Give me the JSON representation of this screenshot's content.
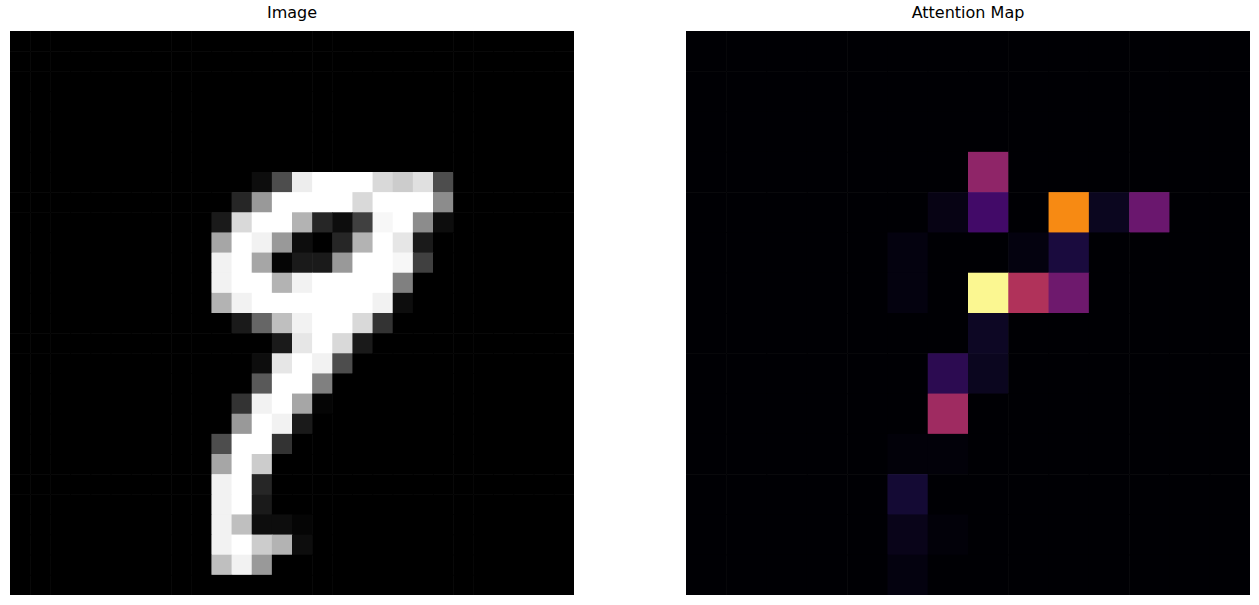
{
  "chart_data": [
    {
      "type": "heatmap",
      "title": "Image",
      "color": "gray",
      "tick_labels": false,
      "cells": [
        [
          0,
          0,
          0,
          0,
          0,
          0,
          0,
          0,
          0,
          0,
          0,
          0,
          0,
          0,
          0,
          0,
          0,
          0,
          0,
          0,
          0,
          0,
          0,
          0,
          0,
          0,
          0,
          0
        ],
        [
          0,
          0,
          0,
          0,
          0,
          0,
          0,
          0,
          0,
          0,
          0,
          0,
          0,
          0,
          0,
          0,
          0,
          0,
          0,
          0,
          0,
          0,
          0,
          0,
          0,
          0,
          0,
          0
        ],
        [
          0,
          0,
          0,
          0,
          0,
          0,
          0,
          0,
          0,
          0,
          0,
          0,
          0,
          0,
          0,
          0,
          0,
          0,
          0,
          0,
          0,
          0,
          0,
          0,
          0,
          0,
          0,
          0
        ],
        [
          0,
          0,
          0,
          0,
          0,
          0,
          0,
          0,
          0,
          0,
          0,
          0,
          0,
          0,
          0,
          0,
          0,
          0,
          0,
          0,
          0,
          0,
          0,
          0,
          0,
          0,
          0,
          0
        ],
        [
          0,
          0,
          0,
          0,
          0,
          0,
          0,
          0,
          0,
          0,
          0,
          0,
          0,
          0,
          0,
          0,
          0,
          0,
          0,
          0,
          0,
          0,
          0,
          0,
          0,
          0,
          0,
          0
        ],
        [
          0,
          0,
          0,
          0,
          0,
          0,
          0,
          0,
          0,
          0,
          0,
          0,
          0,
          0,
          0,
          0,
          0,
          0,
          0,
          0,
          0,
          0,
          0,
          0,
          0,
          0,
          0,
          0
        ],
        [
          0,
          0,
          0,
          0,
          0,
          0,
          0,
          0,
          0,
          0,
          0,
          0,
          0,
          0,
          0,
          0,
          0,
          0,
          0,
          0,
          0,
          0,
          0,
          0,
          0,
          0,
          0,
          0
        ],
        [
          0,
          0,
          0,
          0,
          0,
          0,
          0,
          0,
          0,
          0,
          0,
          0,
          0.05,
          0.3,
          0.93,
          1,
          1,
          1,
          0.85,
          0.8,
          0.88,
          0.3,
          0,
          0,
          0,
          0,
          0,
          0
        ],
        [
          0,
          0,
          0,
          0,
          0,
          0,
          0,
          0,
          0,
          0,
          0,
          0.15,
          0.6,
          1,
          1,
          1,
          1,
          0.85,
          1,
          1,
          1,
          0.55,
          0,
          0,
          0,
          0,
          0,
          0
        ],
        [
          0,
          0,
          0,
          0,
          0,
          0,
          0,
          0,
          0,
          0,
          0.1,
          0.85,
          1,
          1,
          0.7,
          0.15,
          0.05,
          0.25,
          0.97,
          1,
          0.55,
          0.05,
          0,
          0,
          0,
          0,
          0,
          0
        ],
        [
          0,
          0,
          0,
          0,
          0,
          0,
          0,
          0,
          0,
          0,
          0.65,
          1,
          0.95,
          0.6,
          0.05,
          0,
          0.15,
          0.7,
          1,
          0.9,
          0.1,
          0,
          0,
          0,
          0,
          0,
          0,
          0
        ],
        [
          0,
          0,
          0,
          0,
          0,
          0,
          0,
          0,
          0,
          0,
          0.95,
          1,
          0.65,
          0.02,
          0.1,
          0.1,
          0.6,
          1,
          1,
          0.97,
          0.25,
          0,
          0,
          0,
          0,
          0,
          0,
          0
        ],
        [
          0,
          0,
          0,
          0,
          0,
          0,
          0,
          0,
          0,
          0,
          0.95,
          1,
          1,
          0.7,
          0.95,
          1,
          1,
          1,
          1,
          0.5,
          0,
          0,
          0,
          0,
          0,
          0,
          0,
          0
        ],
        [
          0,
          0,
          0,
          0,
          0,
          0,
          0,
          0,
          0,
          0,
          0.7,
          0.95,
          1,
          1,
          1,
          1,
          1,
          1,
          0.95,
          0.05,
          0,
          0,
          0,
          0,
          0,
          0,
          0,
          0
        ],
        [
          0,
          0,
          0,
          0,
          0,
          0,
          0,
          0,
          0,
          0,
          0,
          0.1,
          0.4,
          0.75,
          0.95,
          1,
          1,
          0.85,
          0.2,
          0,
          0,
          0,
          0,
          0,
          0,
          0,
          0,
          0
        ],
        [
          0,
          0,
          0,
          0,
          0,
          0,
          0,
          0,
          0,
          0,
          0,
          0,
          0,
          0.1,
          0.9,
          1,
          0.85,
          0.1,
          0,
          0,
          0,
          0,
          0,
          0,
          0,
          0,
          0,
          0
        ],
        [
          0,
          0,
          0,
          0,
          0,
          0,
          0,
          0,
          0,
          0,
          0,
          0,
          0.05,
          0.9,
          1,
          0.95,
          0.3,
          0,
          0,
          0,
          0,
          0,
          0,
          0,
          0,
          0,
          0,
          0
        ],
        [
          0,
          0,
          0,
          0,
          0,
          0,
          0,
          0,
          0,
          0,
          0,
          0,
          0.35,
          1,
          1,
          0.5,
          0,
          0,
          0,
          0,
          0,
          0,
          0,
          0,
          0,
          0,
          0,
          0
        ],
        [
          0,
          0,
          0,
          0,
          0,
          0,
          0,
          0,
          0,
          0,
          0,
          0.2,
          0.95,
          1,
          0.65,
          0.02,
          0,
          0,
          0,
          0,
          0,
          0,
          0,
          0,
          0,
          0,
          0,
          0
        ],
        [
          0,
          0,
          0,
          0,
          0,
          0,
          0,
          0,
          0,
          0,
          0,
          0.6,
          1,
          0.95,
          0.1,
          0,
          0,
          0,
          0,
          0,
          0,
          0,
          0,
          0,
          0,
          0,
          0,
          0
        ],
        [
          0,
          0,
          0,
          0,
          0,
          0,
          0,
          0,
          0,
          0,
          0.3,
          1,
          1,
          0.2,
          0,
          0,
          0,
          0,
          0,
          0,
          0,
          0,
          0,
          0,
          0,
          0,
          0,
          0
        ],
        [
          0,
          0,
          0,
          0,
          0,
          0,
          0,
          0,
          0,
          0,
          0.65,
          1,
          0.8,
          0,
          0,
          0,
          0,
          0,
          0,
          0,
          0,
          0,
          0,
          0,
          0,
          0,
          0,
          0
        ],
        [
          0,
          0,
          0,
          0,
          0,
          0,
          0,
          0,
          0,
          0,
          0.95,
          1,
          0.15,
          0,
          0,
          0,
          0,
          0,
          0,
          0,
          0,
          0,
          0,
          0,
          0,
          0,
          0,
          0
        ],
        [
          0,
          0,
          0,
          0,
          0,
          0,
          0,
          0,
          0,
          0,
          0.95,
          1,
          0.1,
          0,
          0,
          0,
          0,
          0,
          0,
          0,
          0,
          0,
          0,
          0,
          0,
          0,
          0,
          0
        ],
        [
          0,
          0,
          0,
          0,
          0,
          0,
          0,
          0,
          0,
          0,
          0.95,
          0.75,
          0.05,
          0.05,
          0.02,
          0,
          0,
          0,
          0,
          0,
          0,
          0,
          0,
          0,
          0,
          0,
          0,
          0
        ],
        [
          0,
          0,
          0,
          0,
          0,
          0,
          0,
          0,
          0,
          0,
          0.95,
          1,
          0.8,
          0.7,
          0.05,
          0,
          0,
          0,
          0,
          0,
          0,
          0,
          0,
          0,
          0,
          0,
          0,
          0
        ],
        [
          0,
          0,
          0,
          0,
          0,
          0,
          0,
          0,
          0,
          0,
          0.75,
          0.95,
          0.6,
          0,
          0,
          0,
          0,
          0,
          0,
          0,
          0,
          0,
          0,
          0,
          0,
          0,
          0,
          0
        ],
        [
          0,
          0,
          0,
          0,
          0,
          0,
          0,
          0,
          0,
          0,
          0,
          0,
          0,
          0,
          0,
          0,
          0,
          0,
          0,
          0,
          0,
          0,
          0,
          0,
          0,
          0,
          0,
          0
        ]
      ]
    },
    {
      "type": "heatmap",
      "title": "Attention Map",
      "color": "inferno",
      "tick_labels": false,
      "cells": [
        [
          0,
          0,
          0,
          0,
          0,
          0,
          0,
          0,
          0,
          0,
          0,
          0,
          0,
          0
        ],
        [
          0,
          0,
          0,
          0,
          0,
          0,
          0,
          0,
          0,
          0,
          0,
          0,
          0,
          0
        ],
        [
          0,
          0,
          0,
          0,
          0,
          0,
          0,
          0,
          0,
          0,
          0,
          0,
          0,
          0
        ],
        [
          0,
          0,
          0,
          0,
          0,
          0,
          0,
          0.39,
          0,
          0,
          0,
          0,
          0,
          0
        ],
        [
          0,
          0,
          0,
          0,
          0,
          0,
          0.03,
          0.2,
          0,
          0.74,
          0.05,
          0.3,
          0,
          0
        ],
        [
          0,
          0,
          0,
          0,
          0,
          0.02,
          0,
          0,
          0.02,
          0.11,
          0,
          0,
          0,
          0
        ],
        [
          0,
          0,
          0,
          0,
          0,
          0.02,
          0,
          0.98,
          0.47,
          0.31,
          0,
          0,
          0,
          0
        ],
        [
          0,
          0,
          0,
          0,
          0,
          0,
          0,
          0.06,
          0,
          0,
          0,
          0,
          0,
          0
        ],
        [
          0,
          0,
          0,
          0,
          0,
          0,
          0.15,
          0.05,
          0,
          0,
          0,
          0,
          0,
          0
        ],
        [
          0,
          0,
          0,
          0,
          0,
          0,
          0.43,
          0,
          0,
          0,
          0,
          0,
          0,
          0
        ],
        [
          0,
          0,
          0,
          0,
          0,
          0.01,
          0.01,
          0,
          0,
          0,
          0,
          0,
          0,
          0
        ],
        [
          0,
          0,
          0,
          0,
          0,
          0.09,
          0,
          0,
          0,
          0,
          0,
          0,
          0,
          0
        ],
        [
          0,
          0,
          0,
          0,
          0,
          0.04,
          0.01,
          0,
          0,
          0,
          0,
          0,
          0,
          0
        ],
        [
          0,
          0,
          0,
          0,
          0,
          0.02,
          0,
          0,
          0,
          0,
          0,
          0,
          0,
          0
        ]
      ]
    }
  ]
}
